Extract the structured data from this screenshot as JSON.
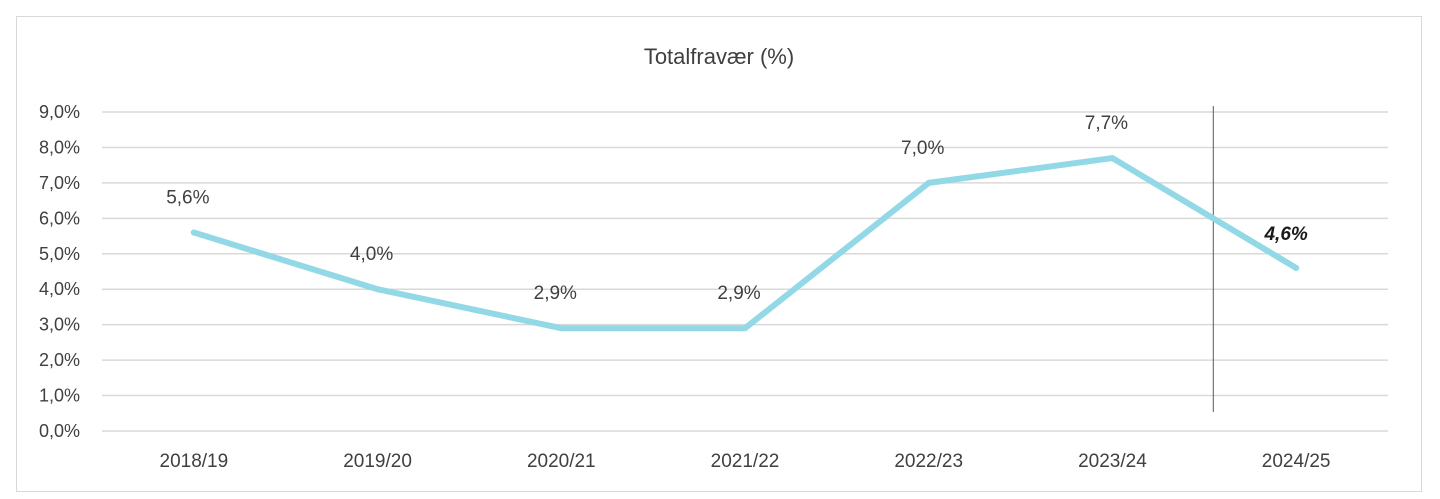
{
  "chart_data": {
    "type": "line",
    "title": "Totalfravær (%)",
    "xlabel": "",
    "ylabel": "",
    "categories": [
      "2018/19",
      "2019/20",
      "2020/21",
      "2021/22",
      "2022/23",
      "2023/24",
      "2024/25"
    ],
    "series": [
      {
        "values": [
          5.6,
          4.0,
          2.9,
          2.9,
          7.0,
          7.7,
          4.6
        ]
      }
    ],
    "data_labels": [
      "5,6%",
      "4,0%",
      "2,9%",
      "2,9%",
      "7,0%",
      "7,7%",
      "4,6%"
    ],
    "emphasized_label_index": 6,
    "ylim": [
      0,
      9
    ],
    "yticks": [
      "0,0%",
      "1,0%",
      "2,0%",
      "3,0%",
      "4,0%",
      "5,0%",
      "6,0%",
      "7,0%",
      "8,0%",
      "9,0%"
    ],
    "grid": true,
    "legend": "none",
    "line_color": "#92d8e6",
    "grid_color": "#d9d9d9",
    "divider": "vertical line between 2023/24 and 2024/25"
  }
}
